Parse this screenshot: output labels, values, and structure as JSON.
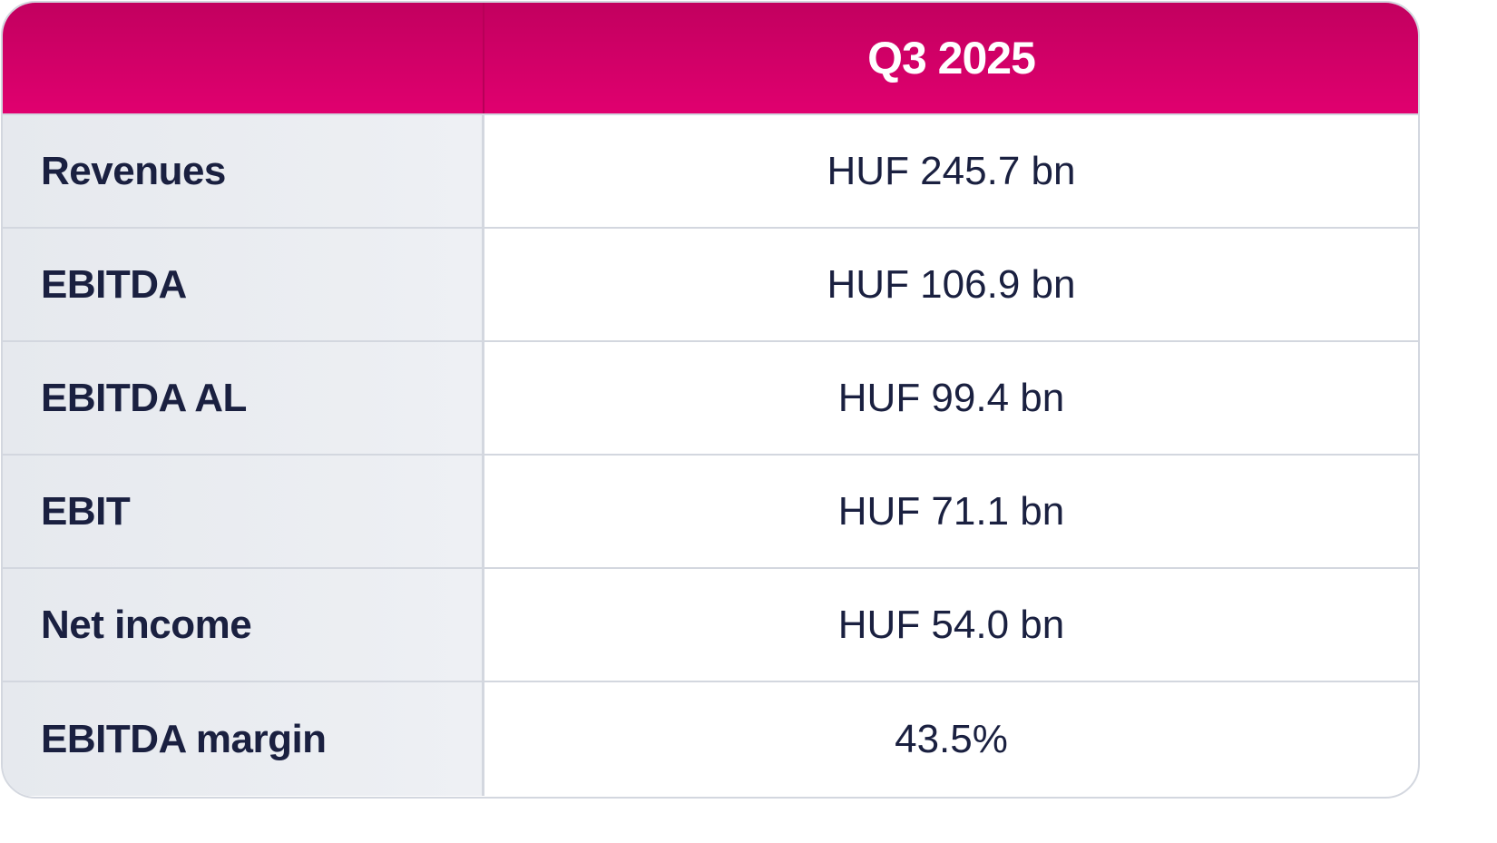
{
  "table": {
    "header": {
      "metric_label": "",
      "period": "Q3 2025"
    },
    "rows": [
      {
        "metric": "Revenues",
        "value": "HUF 245.7 bn"
      },
      {
        "metric": "EBITDA",
        "value": "HUF 106.9 bn"
      },
      {
        "metric": "EBITDA AL",
        "value": "HUF 99.4 bn"
      },
      {
        "metric": "EBIT",
        "value": "HUF 71.1 bn"
      },
      {
        "metric": "Net income",
        "value": "HUF 54.0 bn"
      },
      {
        "metric": "EBITDA margin",
        "value": "43.5%"
      }
    ]
  },
  "colors": {
    "header_magenta": "#e0006f",
    "text_navy": "#1a2040",
    "label_bg": "#eceef2",
    "border": "#d3d7df"
  }
}
